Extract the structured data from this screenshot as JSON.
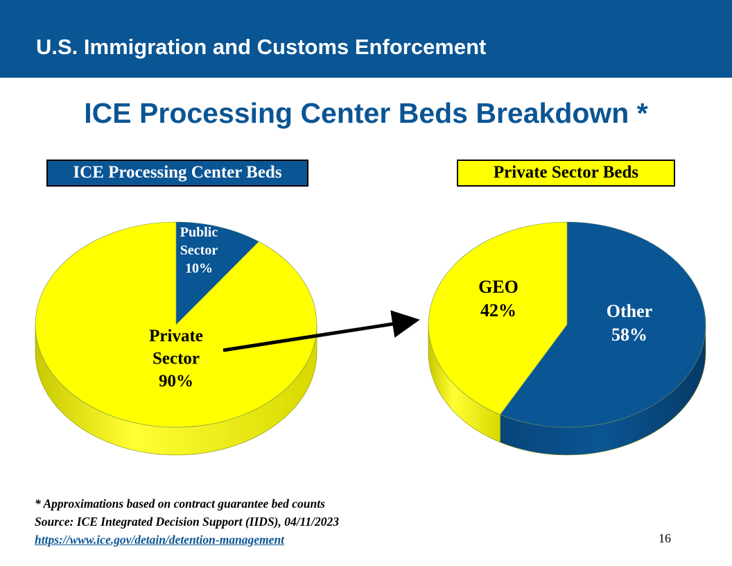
{
  "header": {
    "title": "U.S. Immigration and Customs Enforcement"
  },
  "slide_title": "ICE Processing Center Beds Breakdown *",
  "boxes": {
    "left": "ICE Processing Center Beds",
    "right": "Private Sector Beds"
  },
  "colors": {
    "brand_blue": "#0a5594",
    "yellow": "#ffff00"
  },
  "chart_data": [
    {
      "type": "pie",
      "title": "ICE Processing Center Beds",
      "slices": [
        {
          "label": [
            "Public",
            "Sector",
            "10%"
          ],
          "value": 10,
          "color": "#0a5594"
        },
        {
          "label": [
            "Private",
            "Sector",
            "90%"
          ],
          "value": 90,
          "color": "#ffff00"
        }
      ],
      "three_d": true
    },
    {
      "type": "pie",
      "title": "Private Sector Beds",
      "slices": [
        {
          "label": [
            "Other",
            "58%"
          ],
          "value": 58,
          "color": "#0a5594"
        },
        {
          "label": [
            "GEO",
            "42%"
          ],
          "value": 42,
          "color": "#ffff00"
        }
      ],
      "three_d": true
    }
  ],
  "footnotes": {
    "line1": "* Approximations based on contract guarantee bed counts",
    "line2": "Source: ICE Integrated Decision Support (IIDS), 04/11/2023",
    "link": "https://www.ice.gov/detain/detention-management"
  },
  "page_number": "16"
}
